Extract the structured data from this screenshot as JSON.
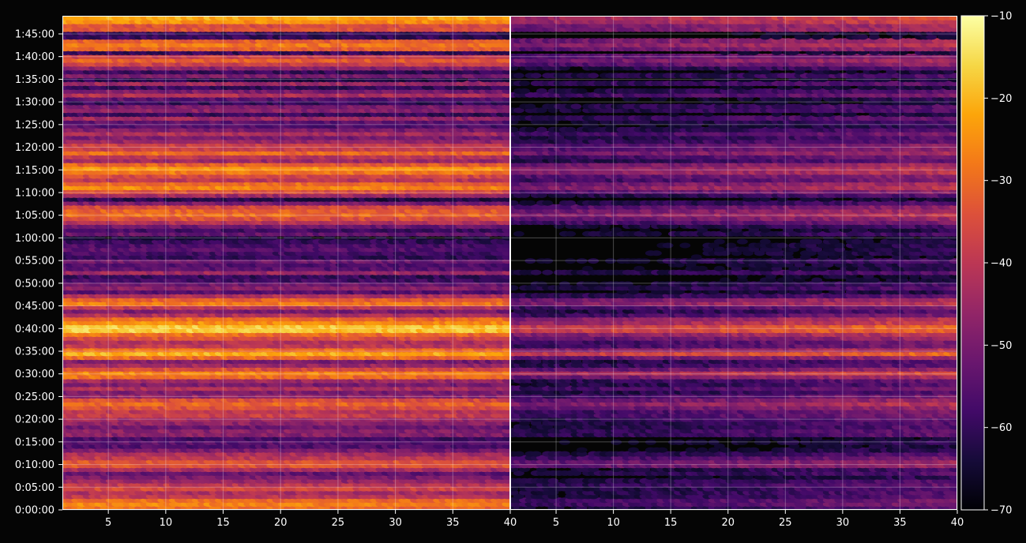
{
  "chart_data": {
    "type": "heatmap",
    "title": "",
    "xlabel": "",
    "ylabel": "",
    "colormap": "inferno",
    "background": "#050505",
    "grid": true,
    "panels": [
      {
        "name": "left",
        "xlim": [
          1,
          40
        ],
        "x_ticks": [
          5,
          10,
          15,
          20,
          25,
          30,
          35,
          40
        ],
        "row_profile": [
          -30,
          -27,
          -30,
          -40,
          -43,
          -36,
          -40,
          -46,
          -50,
          -53,
          -43,
          -34,
          -34,
          -40,
          -43,
          -50,
          -56,
          -55,
          -58,
          -48,
          -48,
          -52,
          -47,
          -45,
          -38,
          -40,
          -35,
          -31,
          -35,
          -47,
          -50,
          -43,
          -50,
          -45,
          -30,
          -27,
          -35,
          -45,
          -50,
          -30,
          -21,
          -30,
          -40,
          -42,
          -35,
          -30,
          -18,
          -18,
          -25,
          -30,
          -42,
          -50,
          -40,
          -28,
          -32,
          -42,
          -55,
          -48,
          -52,
          -58,
          -60,
          -45,
          -55,
          -56,
          -52,
          -60,
          -58,
          -55,
          -57,
          -60,
          -65,
          -53,
          -58,
          -52,
          -42,
          -35,
          -30,
          -32,
          -36,
          -50,
          -62,
          -45,
          -35,
          -26,
          -30,
          -40,
          -36,
          -28,
          -24,
          -32,
          -45,
          -40,
          -30,
          -38,
          -38,
          -46,
          -50,
          -43,
          -50,
          -56,
          -54,
          -45,
          -60,
          -48,
          -50,
          -60,
          -55,
          -42,
          -50,
          -60,
          -45,
          -62,
          -50,
          -60,
          -48,
          -38,
          -32,
          -38,
          -60,
          -32,
          -28,
          -32,
          -60,
          -60,
          -34,
          -35,
          -25,
          -22
        ],
        "column_trend": -2
      },
      {
        "name": "right",
        "xlim": [
          1,
          40
        ],
        "x_ticks": [
          5,
          10,
          15,
          20,
          25,
          30,
          35,
          40
        ],
        "row_profile": [
          -60,
          -55,
          -55,
          -60,
          -60,
          -60,
          -58,
          -60,
          -65,
          -60,
          -62,
          -50,
          -50,
          -55,
          -60,
          -65,
          -68,
          -65,
          -68,
          -58,
          -58,
          -60,
          -60,
          -58,
          -55,
          -55,
          -50,
          -45,
          -50,
          -55,
          -60,
          -55,
          -60,
          -58,
          -48,
          -40,
          -50,
          -58,
          -60,
          -50,
          -35,
          -45,
          -55,
          -55,
          -50,
          -45,
          -35,
          -35,
          -42,
          -45,
          -55,
          -60,
          -55,
          -45,
          -48,
          -58,
          -66,
          -60,
          -62,
          -68,
          -68,
          -60,
          -66,
          -66,
          -62,
          -68,
          -66,
          -66,
          -66,
          -68,
          -70,
          -62,
          -66,
          -62,
          -55,
          -50,
          -45,
          -48,
          -52,
          -60,
          -68,
          -60,
          -52,
          -45,
          -48,
          -55,
          -52,
          -45,
          -45,
          -48,
          -58,
          -55,
          -48,
          -52,
          -52,
          -58,
          -60,
          -55,
          -60,
          -65,
          -62,
          -58,
          -68,
          -60,
          -60,
          -68,
          -65,
          -55,
          -60,
          -68,
          -58,
          -68,
          -60,
          -68,
          -60,
          -52,
          -48,
          -52,
          -68,
          -50,
          -45,
          -48,
          -68,
          -68,
          -48,
          -48,
          -42,
          -40
        ],
        "column_trend": 10
      }
    ],
    "y_axis": {
      "range_seconds": [
        0,
        6540
      ],
      "tick_labels": [
        "0:00:00",
        "0:05:00",
        "0:10:00",
        "0:15:00",
        "0:20:00",
        "0:25:00",
        "0:30:00",
        "0:35:00",
        "0:40:00",
        "0:45:00",
        "0:50:00",
        "0:55:00",
        "1:00:00",
        "1:05:00",
        "1:10:00",
        "1:15:00",
        "1:20:00",
        "1:25:00",
        "1:30:00",
        "1:35:00",
        "1:40:00",
        "1:45:00"
      ]
    },
    "colorbar": {
      "range": [
        -70,
        -10
      ],
      "tick_values": [
        -70,
        -60,
        -50,
        -40,
        -30,
        -20,
        -10
      ],
      "tick_labels": [
        "−70",
        "−60",
        "−50",
        "−40",
        "−30",
        "−20",
        "−10"
      ]
    }
  }
}
